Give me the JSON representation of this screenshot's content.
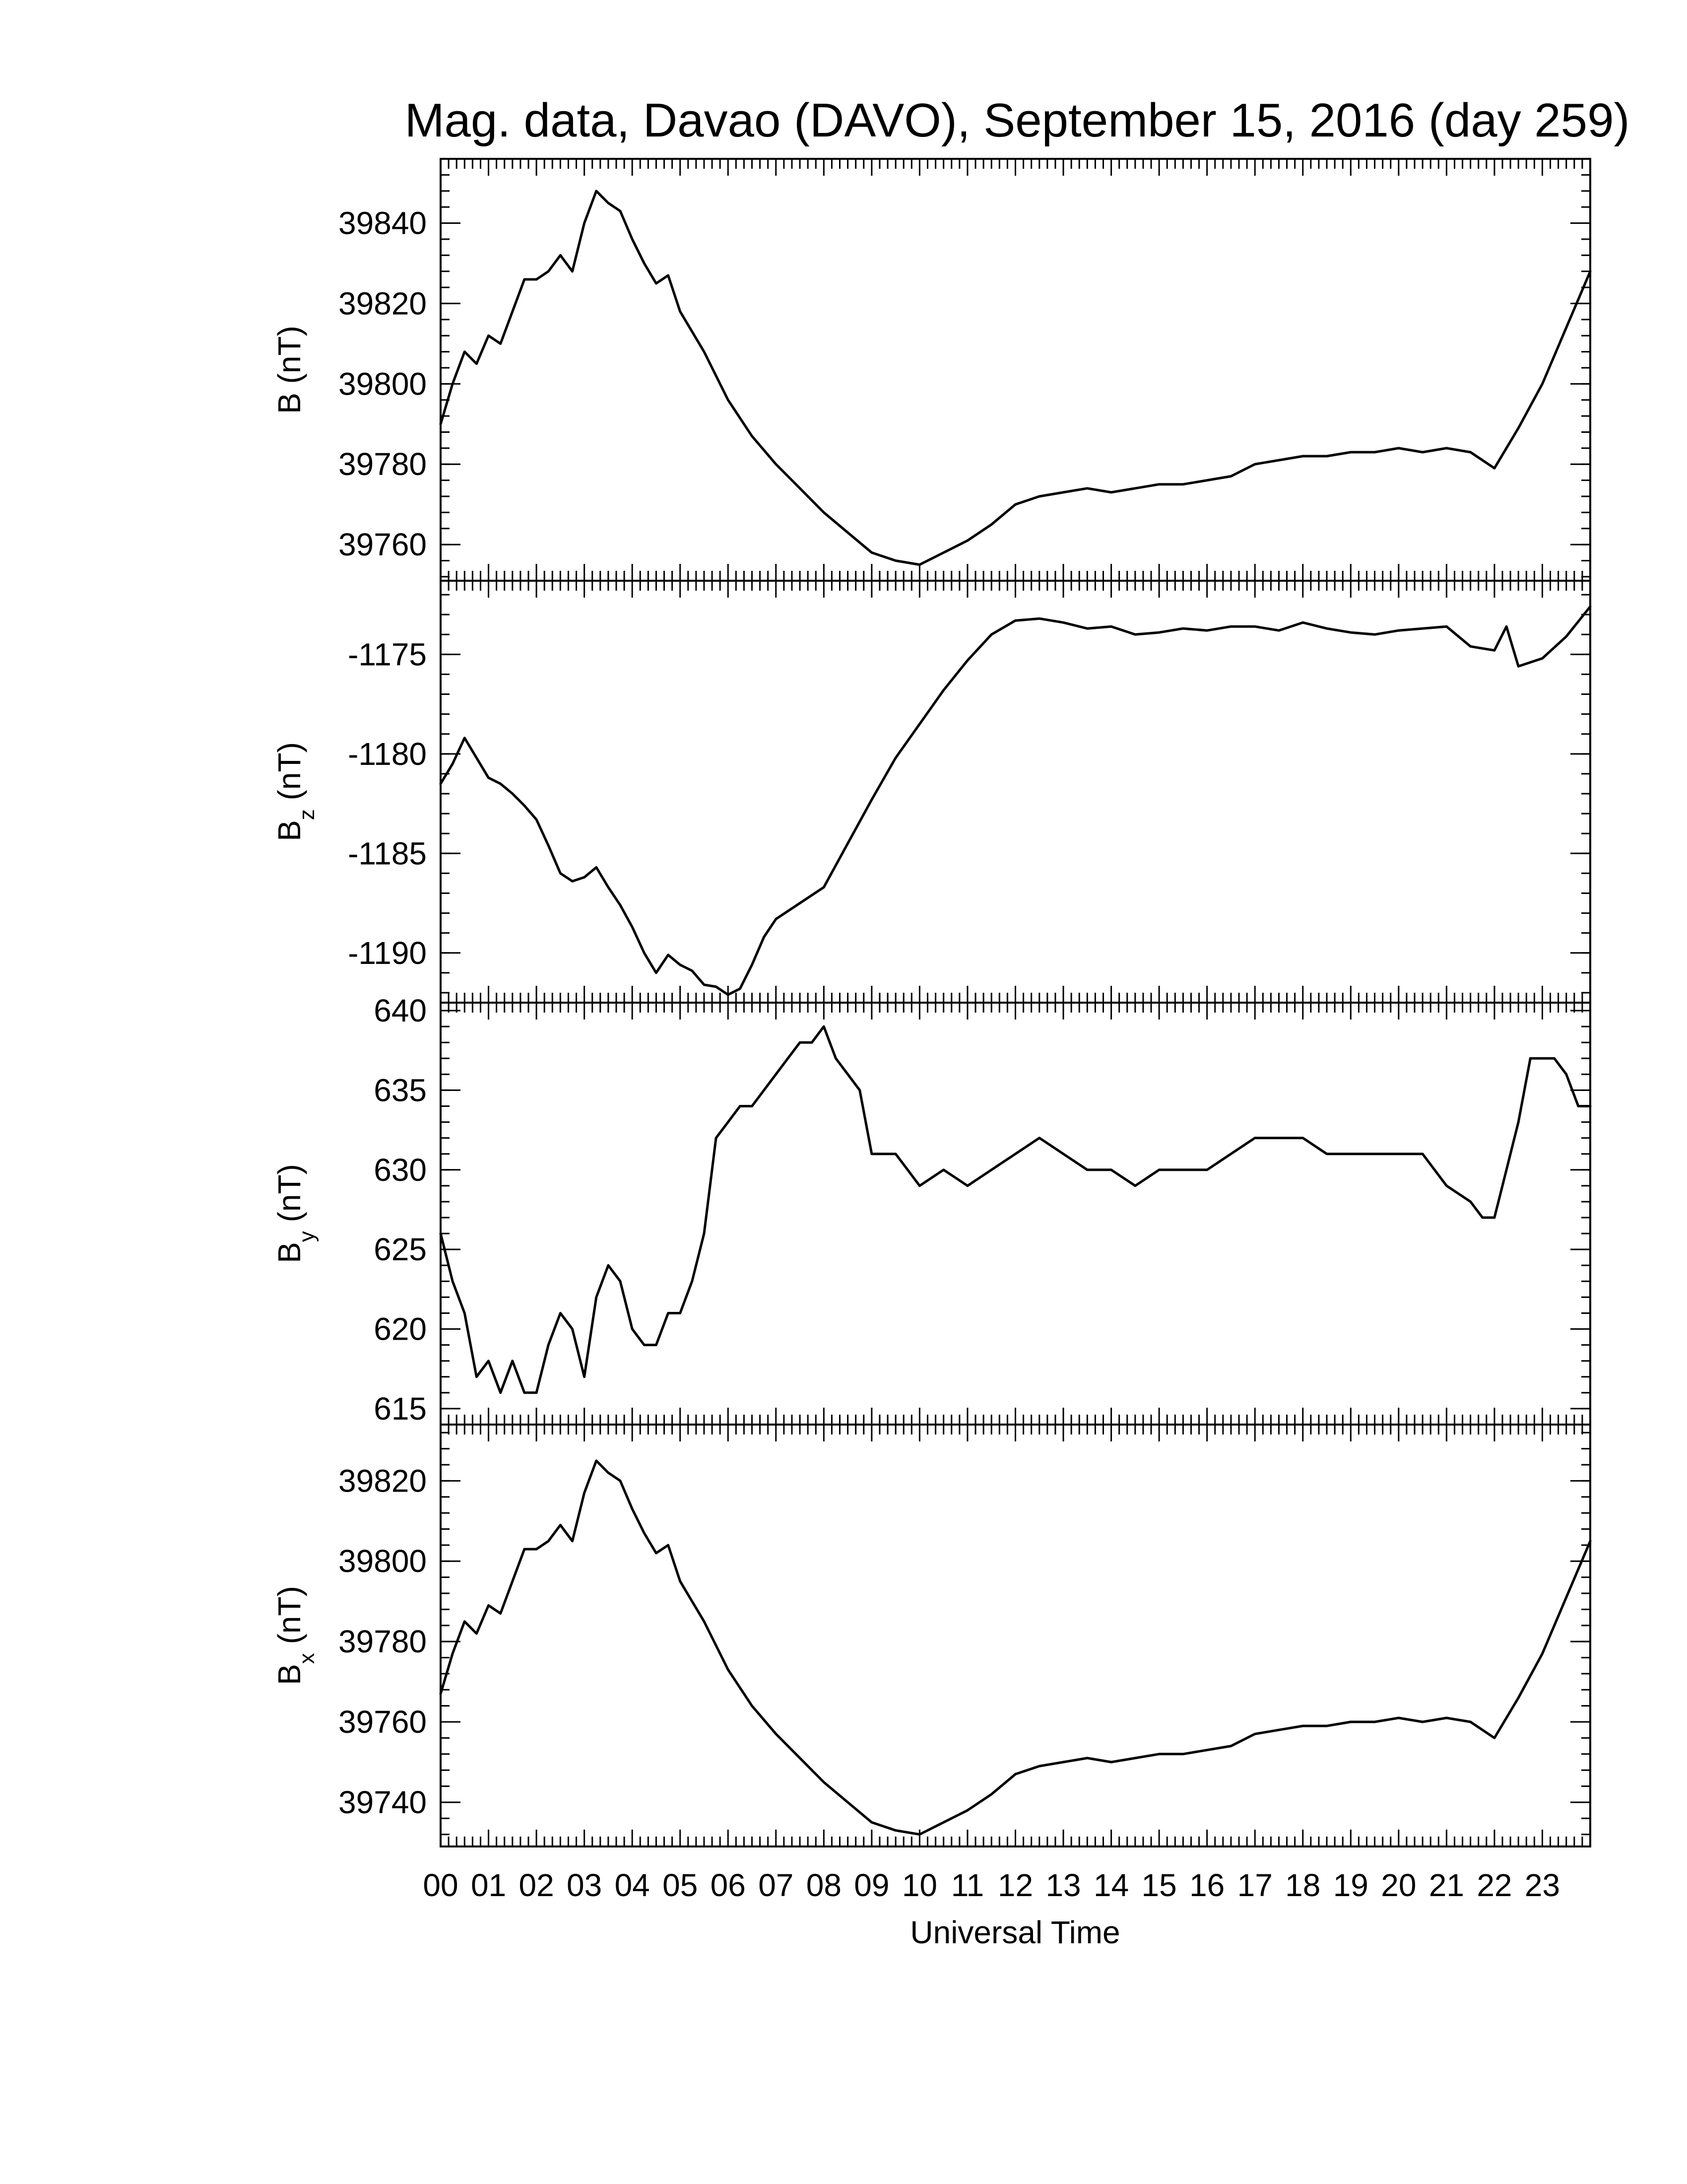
{
  "chart_data": {
    "type": "line",
    "title": "Mag. data, Davao (DAVO), September 15, 2016 (day 259)",
    "xlabel": "Universal Time",
    "x_ticks": [
      "00",
      "01",
      "02",
      "03",
      "04",
      "05",
      "06",
      "07",
      "08",
      "09",
      "10",
      "11",
      "12",
      "13",
      "14",
      "15",
      "16",
      "17",
      "18",
      "19",
      "20",
      "21",
      "22",
      "23"
    ],
    "xlim": [
      0,
      24
    ],
    "line_color": "#000000",
    "panels": [
      {
        "name": "B",
        "ylabel_main": "B (nT)",
        "ylabel_sub": "",
        "ylabel_unit": "",
        "ylim": [
          39751,
          39856
        ],
        "y_ticks": [
          39760,
          39780,
          39800,
          39820,
          39840
        ],
        "series": {
          "x": [
            0,
            0.25,
            0.5,
            0.75,
            1,
            1.25,
            1.5,
            1.75,
            2,
            2.25,
            2.5,
            2.75,
            3,
            3.25,
            3.5,
            3.75,
            4,
            4.25,
            4.5,
            4.75,
            5,
            5.5,
            6,
            6.5,
            7,
            7.5,
            8,
            8.5,
            9,
            9.5,
            10,
            10.5,
            11,
            11.5,
            12,
            12.5,
            13,
            13.5,
            14,
            14.5,
            15,
            15.5,
            16,
            16.5,
            17,
            17.5,
            18,
            18.5,
            19,
            19.5,
            20,
            20.5,
            21,
            21.5,
            22,
            22.5,
            23,
            23.5,
            24
          ],
          "y": [
            39790,
            39800,
            39808,
            39805,
            39812,
            39810,
            39818,
            39826,
            39826,
            39828,
            39832,
            39828,
            39840,
            39848,
            39845,
            39843,
            39836,
            39830,
            39825,
            39827,
            39818,
            39808,
            39796,
            39787,
            39780,
            39774,
            39768,
            39763,
            39758,
            39756,
            39755,
            39758,
            39761,
            39765,
            39770,
            39772,
            39773,
            39774,
            39773,
            39774,
            39775,
            39775,
            39776,
            39777,
            39780,
            39781,
            39782,
            39782,
            39783,
            39783,
            39784,
            39783,
            39784,
            39783,
            39779,
            39789,
            39800,
            39814,
            39828
          ]
        }
      },
      {
        "name": "Bz",
        "ylabel_main": "B",
        "ylabel_sub": "z",
        "ylabel_unit": "(nT)",
        "ylim": [
          -1192.5,
          -1171.3
        ],
        "y_ticks": [
          -1175,
          -1180,
          -1185,
          -1190
        ],
        "series": {
          "x": [
            0,
            0.25,
            0.5,
            0.75,
            1,
            1.25,
            1.5,
            1.75,
            2,
            2.25,
            2.5,
            2.75,
            3,
            3.25,
            3.5,
            3.75,
            4,
            4.25,
            4.5,
            4.75,
            5,
            5.25,
            5.5,
            5.75,
            6,
            6.25,
            6.5,
            6.75,
            7,
            7.5,
            8,
            8.5,
            9,
            9.5,
            10,
            10.5,
            11,
            11.5,
            12,
            12.5,
            13,
            13.5,
            14,
            14.5,
            15,
            15.5,
            16,
            16.5,
            17,
            17.5,
            18,
            18.5,
            19,
            19.5,
            20,
            20.5,
            21,
            21.5,
            22,
            22.25,
            22.5,
            22.75,
            23,
            23.5,
            24
          ],
          "y": [
            -1181.5,
            -1180.5,
            -1179.2,
            -1180.2,
            -1181.2,
            -1181.5,
            -1182.0,
            -1182.6,
            -1183.3,
            -1184.6,
            -1186.0,
            -1186.4,
            -1186.2,
            -1185.7,
            -1186.7,
            -1187.6,
            -1188.7,
            -1190.0,
            -1191.0,
            -1190.1,
            -1190.6,
            -1190.9,
            -1191.6,
            -1191.7,
            -1192.1,
            -1191.8,
            -1190.6,
            -1189.2,
            -1188.3,
            -1187.5,
            -1186.7,
            -1184.5,
            -1182.3,
            -1180.2,
            -1178.5,
            -1176.8,
            -1175.3,
            -1174.0,
            -1173.3,
            -1173.2,
            -1173.4,
            -1173.7,
            -1173.6,
            -1174.0,
            -1173.9,
            -1173.7,
            -1173.8,
            -1173.6,
            -1173.6,
            -1173.8,
            -1173.4,
            -1173.7,
            -1173.9,
            -1174.0,
            -1173.8,
            -1173.7,
            -1173.6,
            -1174.6,
            -1174.8,
            -1173.6,
            -1175.6,
            -1175.4,
            -1175.2,
            -1174.1,
            -1172.6
          ]
        }
      },
      {
        "name": "By",
        "ylabel_main": "B",
        "ylabel_sub": "y",
        "ylabel_unit": "(nT)",
        "ylim": [
          614,
          640.5
        ],
        "y_ticks": [
          615,
          620,
          625,
          630,
          635,
          640
        ],
        "series": {
          "x": [
            0,
            0.25,
            0.5,
            0.75,
            1,
            1.25,
            1.5,
            1.75,
            2,
            2.25,
            2.5,
            2.75,
            3,
            3.25,
            3.5,
            3.75,
            4,
            4.25,
            4.5,
            4.75,
            5,
            5.25,
            5.5,
            5.75,
            6,
            6.25,
            6.5,
            6.75,
            7,
            7.25,
            7.5,
            7.75,
            8,
            8.25,
            8.5,
            8.75,
            9,
            9.25,
            9.5,
            9.75,
            10,
            10.5,
            11,
            11.5,
            12,
            12.5,
            13,
            13.5,
            14,
            14.5,
            15,
            15.5,
            16,
            16.5,
            17,
            17.5,
            18,
            18.5,
            19,
            19.5,
            20,
            20.5,
            21,
            21.5,
            21.75,
            22,
            22.25,
            22.5,
            22.75,
            23,
            23.25,
            23.5,
            23.75,
            24
          ],
          "y": [
            626,
            623,
            621,
            617,
            618,
            616,
            618,
            616,
            616,
            619,
            621,
            620,
            617,
            622,
            624,
            623,
            620,
            619,
            619,
            621,
            621,
            623,
            626,
            632,
            633,
            634,
            634,
            635,
            636,
            637,
            638,
            638,
            639,
            637,
            636,
            635,
            631,
            631,
            631,
            630,
            629,
            630,
            629,
            630,
            631,
            632,
            631,
            630,
            630,
            629,
            630,
            630,
            630,
            631,
            632,
            632,
            632,
            631,
            631,
            631,
            631,
            631,
            629,
            628,
            627,
            627,
            630,
            633,
            637,
            637,
            637,
            636,
            634,
            634
          ]
        }
      },
      {
        "name": "Bx",
        "ylabel_main": "B",
        "ylabel_sub": "x",
        "ylabel_unit": "(nT)",
        "ylim": [
          39729,
          39834
        ],
        "y_ticks": [
          39740,
          39760,
          39780,
          39800,
          39820
        ],
        "series": {
          "x": [
            0,
            0.25,
            0.5,
            0.75,
            1,
            1.25,
            1.5,
            1.75,
            2,
            2.25,
            2.5,
            2.75,
            3,
            3.25,
            3.5,
            3.75,
            4,
            4.25,
            4.5,
            4.75,
            5,
            5.5,
            6,
            6.5,
            7,
            7.5,
            8,
            8.5,
            9,
            9.5,
            10,
            10.5,
            11,
            11.5,
            12,
            12.5,
            13,
            13.5,
            14,
            14.5,
            15,
            15.5,
            16,
            16.5,
            17,
            17.5,
            18,
            18.5,
            19,
            19.5,
            20,
            20.5,
            21,
            21.5,
            22,
            22.5,
            23,
            23.5,
            24
          ],
          "y": [
            39767,
            39777,
            39785,
            39782,
            39789,
            39787,
            39795,
            39803,
            39803,
            39805,
            39809,
            39805,
            39817,
            39825,
            39822,
            39820,
            39813,
            39807,
            39802,
            39804,
            39795,
            39785,
            39773,
            39764,
            39757,
            39751,
            39745,
            39740,
            39735,
            39733,
            39732,
            39735,
            39738,
            39742,
            39747,
            39749,
            39750,
            39751,
            39750,
            39751,
            39752,
            39752,
            39753,
            39754,
            39757,
            39758,
            39759,
            39759,
            39760,
            39760,
            39761,
            39760,
            39761,
            39760,
            39756,
            39766,
            39777,
            39791,
            39805
          ]
        }
      }
    ]
  }
}
